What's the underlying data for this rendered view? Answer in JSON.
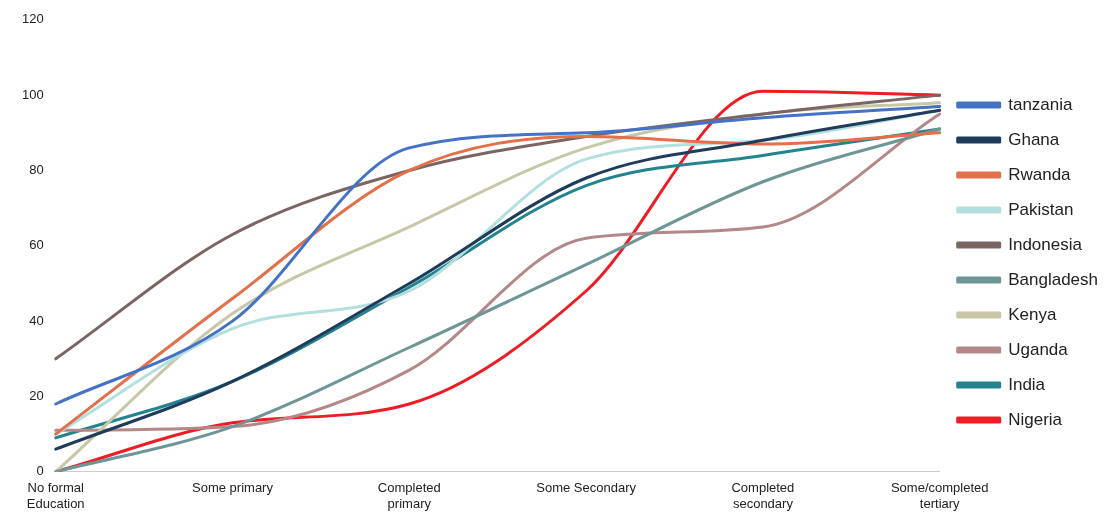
{
  "chart_data": {
    "type": "line",
    "categories": [
      "No formal Education",
      "Some primary",
      "Completed primary",
      "Some Secondary",
      "Completed secondary",
      "Some/completed tertiary"
    ],
    "ylim": [
      0,
      120
    ],
    "yticks": [
      0,
      20,
      40,
      60,
      80,
      100,
      120
    ],
    "grid": false,
    "legend": "right",
    "marker": "none",
    "line_style": "solid",
    "series": [
      {
        "name": "tanzania",
        "color": "#4472c4",
        "values": [
          18,
          40,
          86,
          90,
          94,
          97
        ]
      },
      {
        "name": "Ghana",
        "color": "#1f3c5a",
        "values": [
          6,
          24,
          50,
          78,
          88,
          96
        ]
      },
      {
        "name": "Rwanda",
        "color": "#e2704a",
        "values": [
          10,
          46,
          80,
          89,
          87,
          90
        ]
      },
      {
        "name": "Pakistan",
        "color": "#b4dfdf",
        "values": [
          10,
          38,
          48,
          83,
          88,
          96
        ]
      },
      {
        "name": "Indonesia",
        "color": "#7b6563",
        "values": [
          30,
          63,
          80,
          89,
          95,
          100
        ]
      },
      {
        "name": "Bangladesh",
        "color": "#6e9696",
        "values": [
          0,
          12,
          33,
          55,
          77,
          91
        ]
      },
      {
        "name": "Kenya",
        "color": "#c8c8a8",
        "values": [
          0,
          42,
          65,
          86,
          95,
          98
        ]
      },
      {
        "name": "Uganda",
        "color": "#b48888",
        "values": [
          11,
          12,
          27,
          62,
          65,
          95
        ]
      },
      {
        "name": "India",
        "color": "#23848f",
        "values": [
          9,
          24,
          49,
          76,
          84,
          91
        ]
      },
      {
        "name": "Nigeria",
        "color": "#ee1c24",
        "values": [
          0,
          13,
          18,
          48,
          101,
          100
        ]
      }
    ]
  }
}
